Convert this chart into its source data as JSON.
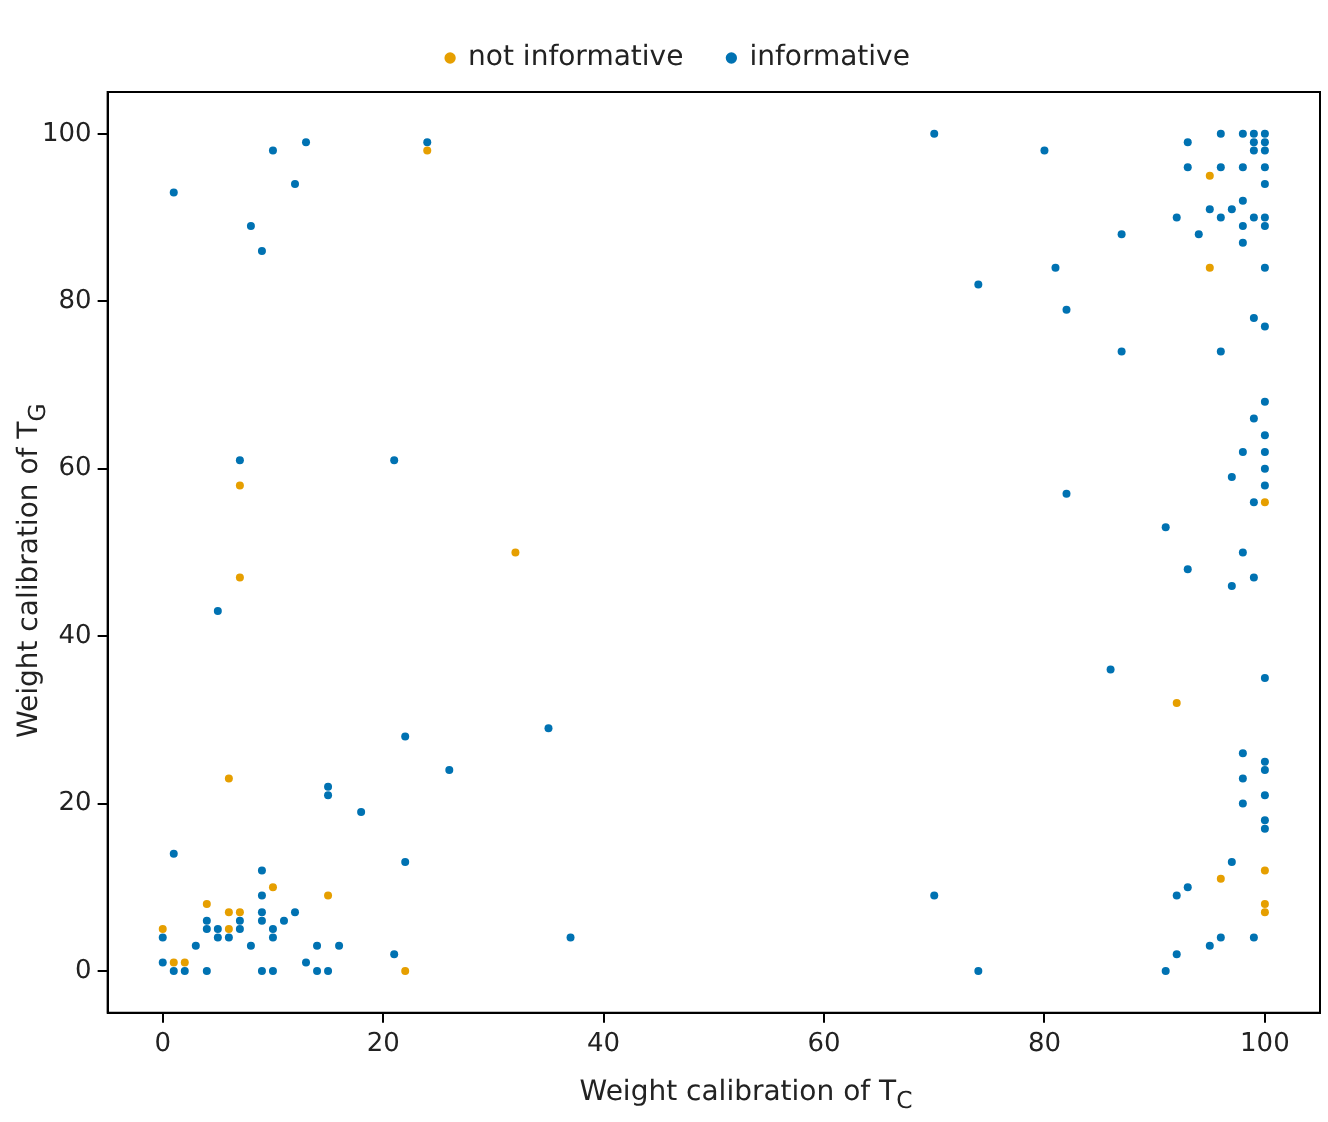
{
  "chart_data": {
    "type": "scatter",
    "xlabel": "Weight calibration of T$_{C}$",
    "ylabel": "Weight calibration of T$_{G}$",
    "xlim": [
      -5,
      105
    ],
    "ylim": [
      -5,
      105
    ],
    "xticks": [
      0,
      20,
      40,
      60,
      80,
      100
    ],
    "yticks": [
      0,
      20,
      40,
      60,
      80,
      100
    ],
    "grid": false,
    "legend": "top",
    "marker": "circle",
    "series": [
      {
        "name": "not informative",
        "color": "#e69f00",
        "x": [
          6,
          10,
          15,
          4,
          6,
          7,
          6,
          0,
          1,
          2,
          22,
          24,
          7,
          32,
          7,
          95,
          95,
          100,
          92,
          96,
          100,
          100,
          100
        ],
        "values": [
          23,
          10,
          9,
          8,
          7,
          7,
          5,
          5,
          1,
          1,
          0,
          98,
          58,
          50,
          47,
          95,
          84,
          56,
          32,
          11,
          12,
          8,
          7
        ]
      },
      {
        "name": "informative",
        "color": "#0072b2",
        "x": [
          15,
          15,
          26,
          18,
          1,
          22,
          9,
          9,
          9,
          12,
          4,
          4,
          5,
          5,
          6,
          7,
          7,
          9,
          10,
          10,
          11,
          0,
          3,
          8,
          14,
          16,
          13,
          21,
          0,
          1,
          2,
          4,
          9,
          10,
          14,
          15,
          13,
          24,
          10,
          12,
          1,
          8,
          9,
          7,
          21,
          5,
          22,
          35,
          37,
          70,
          80,
          93,
          96,
          98,
          99,
          99,
          100,
          100,
          100,
          99,
          93,
          96,
          98,
          100,
          100,
          98,
          95,
          97,
          92,
          96,
          99,
          100,
          100,
          98,
          94,
          87,
          98,
          100,
          81,
          74,
          82,
          99,
          100,
          87,
          96,
          100,
          99,
          100,
          100,
          98,
          100,
          97,
          100,
          99,
          82,
          91,
          98,
          93,
          97,
          99,
          86,
          100,
          98,
          100,
          100,
          98,
          100,
          98,
          100,
          100,
          97,
          93,
          92,
          70,
          96,
          99,
          95,
          92,
          74,
          91
        ],
        "values": [
          22,
          21,
          24,
          19,
          14,
          13,
          12,
          9,
          7,
          7,
          6,
          5,
          5,
          4,
          4,
          6,
          5,
          6,
          5,
          4,
          6,
          4,
          3,
          3,
          3,
          3,
          1,
          2,
          1,
          0,
          0,
          0,
          0,
          0,
          0,
          0,
          99,
          99,
          98,
          94,
          93,
          89,
          86,
          61,
          61,
          43,
          28,
          29,
          4,
          100,
          98,
          99,
          100,
          100,
          100,
          99,
          100,
          99,
          98,
          98,
          96,
          96,
          96,
          96,
          94,
          92,
          91,
          91,
          90,
          90,
          90,
          90,
          89,
          89,
          88,
          88,
          87,
          84,
          84,
          82,
          79,
          78,
          77,
          74,
          74,
          68,
          66,
          64,
          62,
          62,
          60,
          59,
          58,
          56,
          57,
          53,
          50,
          48,
          46,
          47,
          36,
          35,
          26,
          25,
          24,
          23,
          21,
          20,
          18,
          17,
          13,
          10,
          9,
          9,
          4,
          4,
          3,
          2,
          0,
          0
        ]
      }
    ]
  }
}
